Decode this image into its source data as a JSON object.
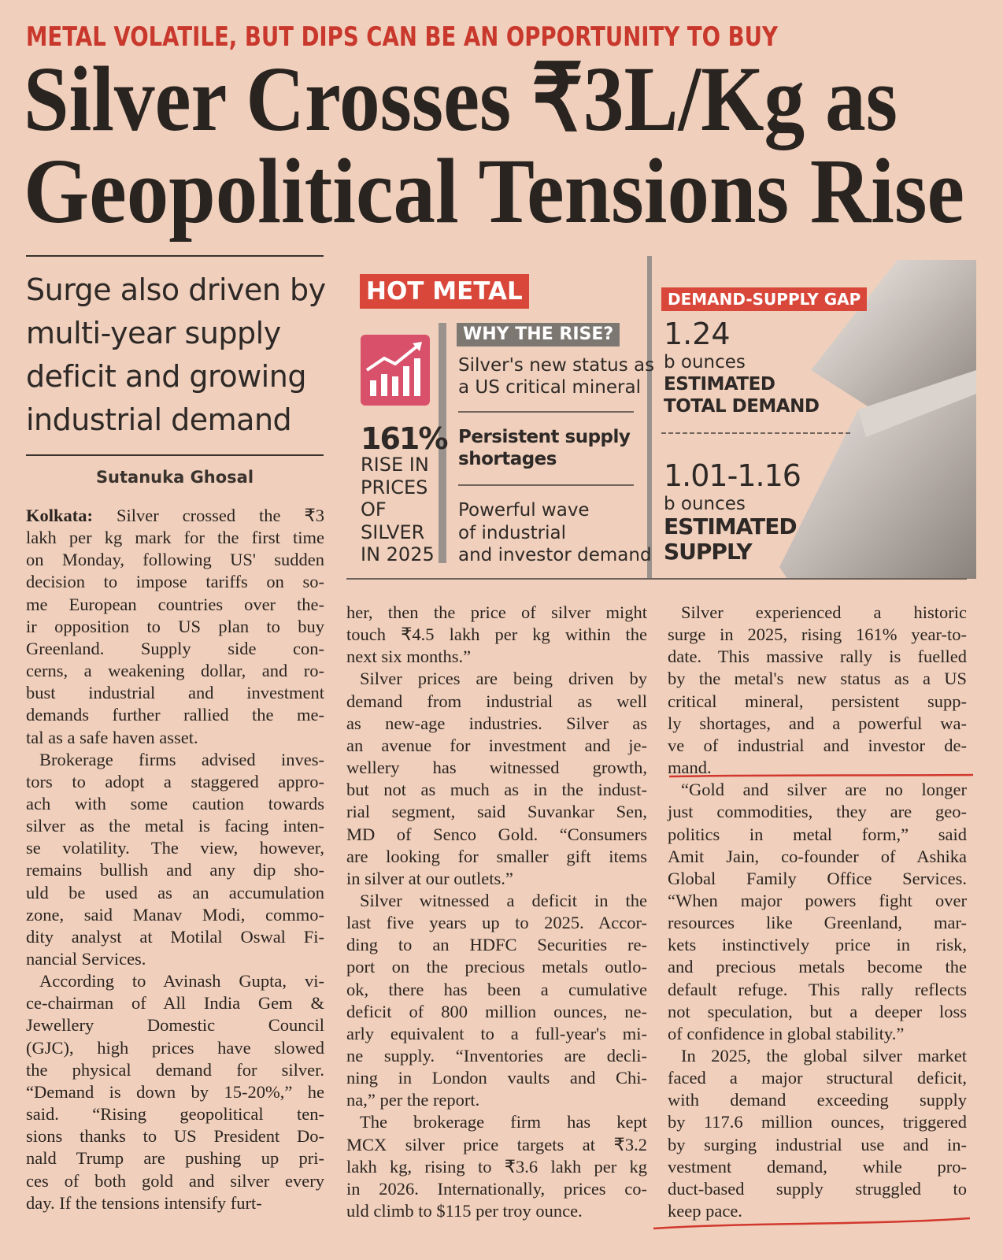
{
  "kicker": "METAL VOLATILE, BUT DIPS CAN BE AN OPPORTUNITY TO BUY",
  "headline": [
    "Silver Crosses ₹3L/Kg as",
    "Geopolitical Tensions Rise"
  ],
  "deck": [
    "Surge also driven by",
    "multi-year supply",
    "deficit and growing",
    "industrial demand"
  ],
  "byline": "Sutanuka Ghosal",
  "infobox": {
    "title": "HOT METAL",
    "stat": {
      "value": "161%",
      "caption": [
        "RISE IN",
        "PRICES",
        "OF",
        "SILVER",
        "IN 2025"
      ]
    },
    "why": {
      "label": "WHY THE RISE?",
      "reasons": [
        [
          "Silver's new status as",
          "a US critical mineral"
        ],
        [
          "Persistent supply",
          "shortages"
        ],
        [
          "Powerful wave",
          "of industrial",
          "and investor demand"
        ]
      ]
    },
    "gap": {
      "label": "DEMAND-SUPPLY GAP",
      "demand": {
        "value": "1.24",
        "unit": "b ounces",
        "label": [
          "ESTIMATED",
          "TOTAL DEMAND"
        ]
      },
      "supply": {
        "value": "1.01-1.16",
        "unit": "b ounces",
        "label": [
          "ESTIMATED",
          "SUPPLY"
        ]
      }
    }
  },
  "article": {
    "dateline": "Kolkata:",
    "columns": [
      {
        "paragraphs": [
          {
            "lines": [
              "Silver crossed the ₹3",
              "lakh per kg mark for the first time",
              "on Monday, following US' sudden",
              "decision to impose tariffs on so-",
              "me European countries over the-",
              "ir opposition to US plan to buy",
              "Greenland. Supply side con-",
              "cerns, a weakening dollar, and ro-",
              "bust industrial and investment",
              "demands further rallied the me-",
              "tal as a safe haven asset."
            ]
          },
          {
            "lines": [
              "Brokerage firms advised inves-",
              "tors to adopt a staggered appro-",
              "ach with some caution towards",
              "silver as the metal is facing inten-",
              "se volatility. The view, however,",
              "remains bullish and any dip sho-",
              "uld be used as an accumulation",
              "zone, said Manav Modi, commo-",
              "dity analyst at Motilal Oswal Fi-",
              "nancial Services."
            ]
          },
          {
            "lines": [
              "According to Avinash Gupta, vi-",
              "ce-chairman of All India Gem &",
              "Jewellery Domestic Council",
              "(GJC), high prices have slowed",
              "the physical demand for silver.",
              "“Demand is down by 15-20%,” he",
              "said. “Rising geopolitical ten-",
              "sions thanks to US President Do-",
              "nald Trump are pushing up pri-",
              "ces of both gold and silver every",
              "day. If the tensions intensify furt-"
            ]
          }
        ]
      },
      {
        "paragraphs": [
          {
            "lines": [
              "her, then the price of silver might",
              "touch ₹4.5 lakh per kg within the",
              "next six months.”"
            ]
          },
          {
            "lines": [
              "Silver prices are being driven by",
              "demand from industrial as well",
              "as new-age industries. Silver as",
              "an avenue for investment and je-",
              "wellery has witnessed growth,",
              "but not as much as in the indust-",
              "rial segment, said Suvankar Sen,",
              "MD of Senco Gold. “Consumers",
              "are looking for smaller gift items",
              "in silver at our outlets.”"
            ]
          },
          {
            "lines": [
              "Silver witnessed a deficit in the",
              "last five years up to 2025. Accor-",
              "ding to an HDFC Securities re-",
              "port on the precious metals outlo-",
              "ok, there has been a cumulative",
              "deficit of 800 million ounces, ne-",
              "arly equivalent to a full-year's mi-",
              "ne supply. “Inventories are decli-",
              "ning in London vaults and Chi-",
              "na,” per the report."
            ]
          },
          {
            "lines": [
              "The brokerage firm has kept",
              "MCX silver price targets at ₹3.2",
              "lakh kg, rising to ₹3.6 lakh per kg",
              "in 2026. Internationally, prices co-",
              "uld climb to $115 per troy ounce."
            ]
          }
        ]
      },
      {
        "paragraphs": [
          {
            "lines": [
              "Silver experienced a historic",
              "surge in 2025, rising 161% year-to-",
              "date. This massive rally is fuelled",
              "by the metal's new status as a US",
              "critical mineral, persistent supp-",
              "ly shortages, and a powerful wa-",
              "ve of industrial and investor de-",
              "mand."
            ]
          },
          {
            "lines": [
              "“Gold and silver are no longer",
              "just commodities, they are geo-",
              "politics in metal form,” said",
              "Amit Jain, co-founder of Ashika",
              "Global Family Office Services.",
              "“When major powers fight over",
              "resources like Greenland, mar-",
              "kets instinctively price in risk,",
              "and precious metals become the",
              "default refuge. This rally reflects",
              "not speculation, but a deeper loss",
              "of confidence in global stability.”"
            ]
          },
          {
            "lines": [
              "In 2025, the global silver market",
              "faced a major structural deficit,",
              "with demand exceeding supply",
              "by 117.6 million ounces, triggered",
              "by surging industrial use and in-",
              "vestment demand, while pro-",
              "duct-based supply struggled to",
              "keep pace."
            ]
          }
        ]
      }
    ]
  }
}
